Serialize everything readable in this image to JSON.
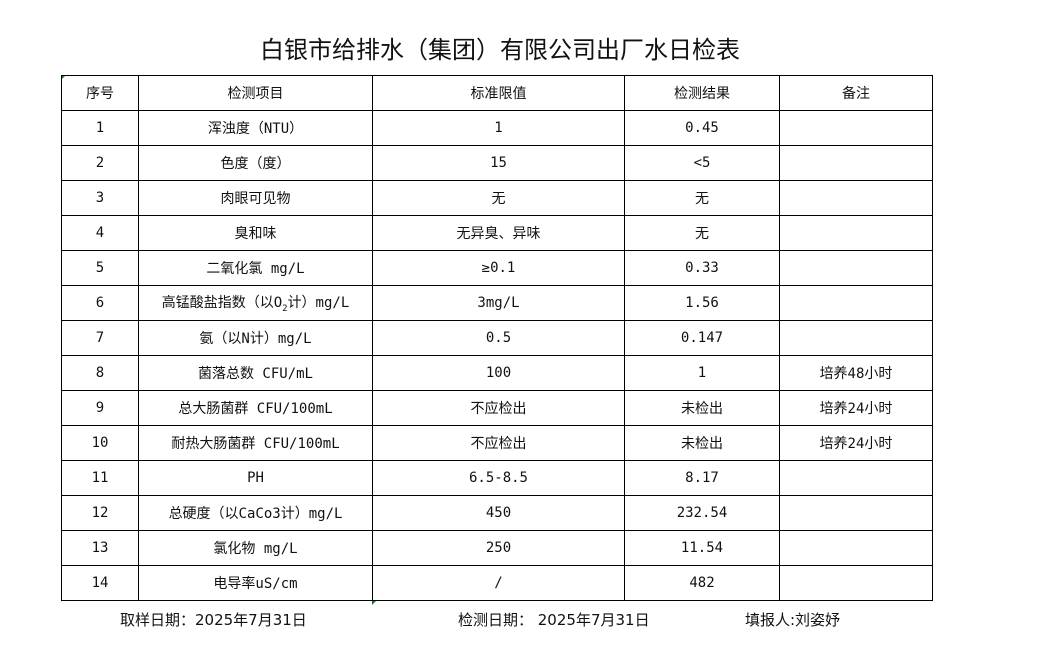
{
  "title": "白银市给排水（集团）有限公司出厂水日检表",
  "headers": [
    "序号",
    "检测项目",
    "标准限值",
    "检测结果",
    "备注"
  ],
  "rows": [
    {
      "no": "1",
      "item": "浑浊度（NTU）",
      "limit": "1",
      "result": "0.45",
      "note": ""
    },
    {
      "no": "2",
      "item": "色度（度）",
      "limit": "15",
      "result": "<5",
      "note": ""
    },
    {
      "no": "3",
      "item": "肉眼可见物",
      "limit": "无",
      "result": "无",
      "note": ""
    },
    {
      "no": "4",
      "item": "臭和味",
      "limit": "无异臭、异味",
      "result": "无",
      "note": ""
    },
    {
      "no": "5",
      "item": "二氧化氯 mg/L",
      "limit": "≥0.1",
      "result": "0.33",
      "note": ""
    },
    {
      "no": "6",
      "item": "高锰酸盐指数（以O",
      "item_sub": "2",
      "item_suffix": "计）mg/L",
      "limit": "3mg/L",
      "result": "1.56",
      "note": ""
    },
    {
      "no": "7",
      "item": "氨（以N计）mg/L",
      "limit": "0.5",
      "result": "0.147",
      "note": ""
    },
    {
      "no": "8",
      "item": "菌落总数 CFU/mL",
      "limit": "100",
      "result": "1",
      "note": "培养48小时"
    },
    {
      "no": "9",
      "item": "总大肠菌群 CFU/100mL",
      "limit": "不应检出",
      "result": "未检出",
      "note": "培养24小时"
    },
    {
      "no": "10",
      "item": "耐热大肠菌群 CFU/100mL",
      "limit": "不应检出",
      "result": "未检出",
      "note": "培养24小时"
    },
    {
      "no": "11",
      "item": "PH",
      "limit": "6.5-8.5",
      "result": "8.17",
      "note": ""
    },
    {
      "no": "12",
      "item": "总硬度（以CaCo3计）mg/L",
      "limit": "450",
      "result": "232.54",
      "note": ""
    },
    {
      "no": "13",
      "item": "氯化物 mg/L",
      "limit": "250",
      "result": "11.54",
      "note": ""
    },
    {
      "no": "14",
      "item": "电导率uS/cm",
      "limit": "/",
      "result": "482",
      "note": ""
    }
  ],
  "footer": {
    "sampling_date": "取样日期：2025年7月31日",
    "test_date": "检测日期： 2025年7月31日",
    "reporter": "填报人:刘姿妤"
  }
}
